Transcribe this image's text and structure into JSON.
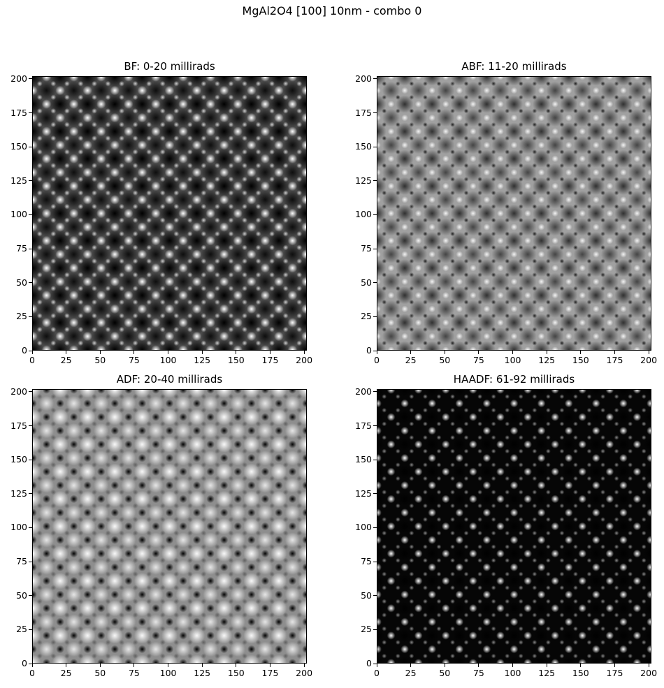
{
  "figure": {
    "title": "MgAl2O4 [100] 10nm - combo 0"
  },
  "panels": [
    {
      "id": "bf",
      "title": "BF: 0-20 millirads",
      "style": "bf"
    },
    {
      "id": "abf",
      "title": "ABF: 11-20 millirads",
      "style": "abf"
    },
    {
      "id": "adf",
      "title": "ADF: 20-40 millirads",
      "style": "adf"
    },
    {
      "id": "haadf",
      "title": "HAADF: 61-92 millirads",
      "style": "haadf"
    }
  ],
  "axes": {
    "x_ticks": [
      "0",
      "25",
      "50",
      "75",
      "100",
      "125",
      "150",
      "175",
      "200"
    ],
    "y_ticks": [
      "0",
      "25",
      "50",
      "75",
      "100",
      "125",
      "150",
      "175",
      "200"
    ],
    "range": [
      0,
      202
    ]
  },
  "colormap": "gray"
}
